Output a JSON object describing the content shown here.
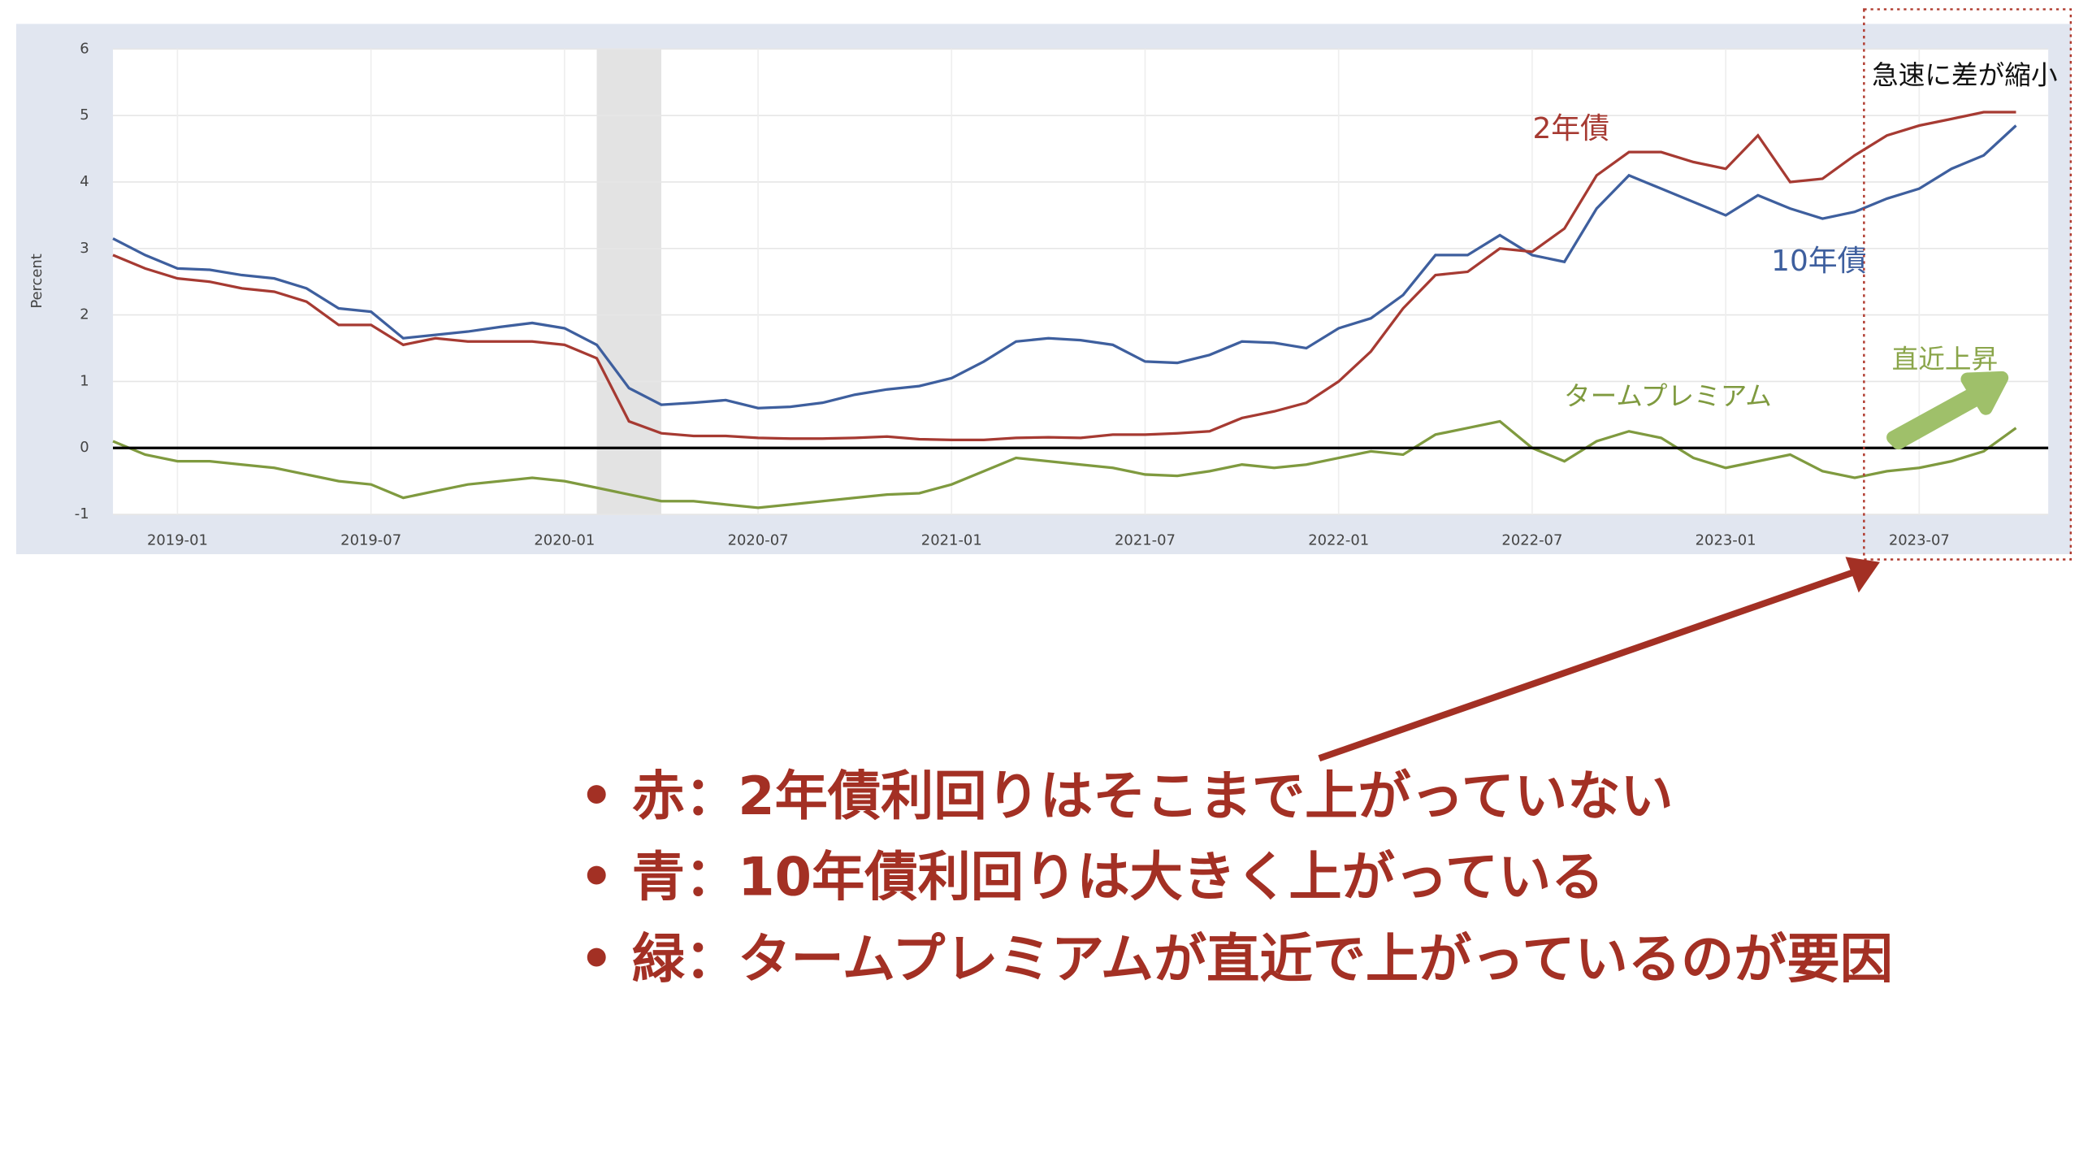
{
  "chart_data": {
    "type": "line",
    "y_label": "Percent",
    "x": [
      "2018-11",
      "2018-12",
      "2019-01",
      "2019-02",
      "2019-03",
      "2019-04",
      "2019-05",
      "2019-06",
      "2019-07",
      "2019-08",
      "2019-09",
      "2019-10",
      "2019-11",
      "2019-12",
      "2020-01",
      "2020-02",
      "2020-03",
      "2020-04",
      "2020-05",
      "2020-06",
      "2020-07",
      "2020-08",
      "2020-09",
      "2020-10",
      "2020-11",
      "2020-12",
      "2021-01",
      "2021-02",
      "2021-03",
      "2021-04",
      "2021-05",
      "2021-06",
      "2021-07",
      "2021-08",
      "2021-09",
      "2021-10",
      "2021-11",
      "2021-12",
      "2022-01",
      "2022-02",
      "2022-03",
      "2022-04",
      "2022-05",
      "2022-06",
      "2022-07",
      "2022-08",
      "2022-09",
      "2022-10",
      "2022-11",
      "2022-12",
      "2023-01",
      "2023-02",
      "2023-03",
      "2023-04",
      "2023-05",
      "2023-06",
      "2023-07",
      "2023-08",
      "2023-09",
      "2023-10"
    ],
    "series": [
      {
        "name": "10年債",
        "color": "#3e5f9e",
        "values": [
          3.15,
          2.9,
          2.7,
          2.68,
          2.6,
          2.55,
          2.4,
          2.1,
          2.05,
          1.65,
          1.7,
          1.75,
          1.82,
          1.88,
          1.8,
          1.55,
          0.9,
          0.65,
          0.68,
          0.72,
          0.6,
          0.62,
          0.68,
          0.8,
          0.88,
          0.93,
          1.05,
          1.3,
          1.6,
          1.65,
          1.62,
          1.55,
          1.3,
          1.28,
          1.4,
          1.6,
          1.58,
          1.5,
          1.8,
          1.95,
          2.3,
          2.9,
          2.9,
          3.2,
          2.9,
          2.8,
          3.6,
          4.1,
          3.9,
          3.7,
          3.5,
          3.8,
          3.6,
          3.45,
          3.55,
          3.75,
          3.9,
          4.2,
          4.4,
          4.85
        ]
      },
      {
        "name": "2年債",
        "color": "#a63a32",
        "values": [
          2.9,
          2.7,
          2.55,
          2.5,
          2.4,
          2.35,
          2.2,
          1.85,
          1.85,
          1.55,
          1.65,
          1.6,
          1.6,
          1.6,
          1.55,
          1.35,
          0.4,
          0.22,
          0.18,
          0.18,
          0.15,
          0.14,
          0.14,
          0.15,
          0.17,
          0.13,
          0.12,
          0.12,
          0.15,
          0.16,
          0.15,
          0.2,
          0.2,
          0.22,
          0.25,
          0.45,
          0.55,
          0.68,
          1.0,
          1.45,
          2.1,
          2.6,
          2.65,
          3.0,
          2.95,
          3.3,
          4.1,
          4.45,
          4.45,
          4.3,
          4.2,
          4.7,
          4.0,
          4.05,
          4.4,
          4.7,
          4.85,
          4.95,
          5.05,
          5.05
        ]
      },
      {
        "name": "タームプレミアム",
        "color": "#7f9a3f",
        "values": [
          0.1,
          -0.1,
          -0.2,
          -0.2,
          -0.25,
          -0.3,
          -0.4,
          -0.5,
          -0.55,
          -0.75,
          -0.65,
          -0.55,
          -0.5,
          -0.45,
          -0.5,
          -0.6,
          -0.7,
          -0.8,
          -0.8,
          -0.85,
          -0.9,
          -0.85,
          -0.8,
          -0.75,
          -0.7,
          -0.68,
          -0.55,
          -0.35,
          -0.15,
          -0.2,
          -0.25,
          -0.3,
          -0.4,
          -0.42,
          -0.35,
          -0.25,
          -0.3,
          -0.25,
          -0.15,
          -0.05,
          -0.1,
          0.2,
          0.3,
          0.4,
          0.0,
          -0.2,
          0.1,
          0.25,
          0.15,
          -0.15,
          -0.3,
          -0.2,
          -0.1,
          -0.35,
          -0.45,
          -0.35,
          -0.3,
          -0.2,
          -0.05,
          0.3
        ]
      }
    ],
    "xlim": [
      "2018-11",
      "2023-11"
    ],
    "xticks": [
      "2019-01",
      "2019-07",
      "2020-01",
      "2020-07",
      "2021-01",
      "2021-07",
      "2022-01",
      "2022-07",
      "2023-01",
      "2023-07"
    ],
    "ylim": [
      -1,
      6
    ],
    "yticks": [
      -1,
      0,
      1,
      2,
      3,
      4,
      5,
      6
    ],
    "grid": true,
    "zero_line": true,
    "shade": {
      "from": "2020-02",
      "to": "2020-04"
    },
    "annotations": [
      "急速に差が縮小",
      "直近上昇"
    ]
  },
  "notes": [
    "• 赤：2年債利回りはそこまで上がっていない",
    "• 青：10年債利回りは大きく上がっている",
    "• 緑：タームプレミアムが直近で上がっているのが要因"
  ]
}
